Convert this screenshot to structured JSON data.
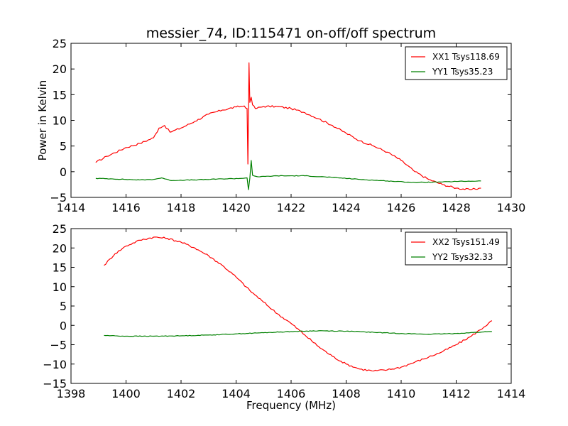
{
  "title": "messier_74, ID:115471 on-off/off spectrum",
  "colors": {
    "xx": "#ff0000",
    "yy": "#008000"
  },
  "chart_data": [
    {
      "type": "line",
      "xlabel": "",
      "ylabel": "Power in Kelvin",
      "xlim": [
        1414,
        1430
      ],
      "ylim": [
        -5,
        25
      ],
      "xticks": [
        "1414",
        "1416",
        "1418",
        "1420",
        "1422",
        "1424",
        "1426",
        "1428",
        "1430"
      ],
      "yticks": [
        "−5",
        "0",
        "5",
        "10",
        "15",
        "20",
        "25"
      ],
      "legend_position": "top-right",
      "series": [
        {
          "name": "XX1 Tsys118.69",
          "color": "#ff0000",
          "x": [
            1414.9,
            1415.3,
            1416.0,
            1416.5,
            1417.0,
            1417.2,
            1417.4,
            1417.6,
            1418.0,
            1418.5,
            1419.0,
            1419.5,
            1420.0,
            1420.3,
            1420.4,
            1420.43,
            1420.47,
            1420.5,
            1420.55,
            1420.6,
            1420.7,
            1421.0,
            1421.5,
            1422.0,
            1422.5,
            1423.0,
            1423.5,
            1424.0,
            1424.5,
            1425.0,
            1425.5,
            1426.0,
            1426.5,
            1427.0,
            1427.5,
            1428.0,
            1428.5,
            1428.9
          ],
          "y": [
            1.8,
            3.0,
            4.7,
            5.5,
            6.6,
            8.5,
            9.0,
            7.7,
            8.5,
            9.8,
            11.2,
            12.0,
            12.6,
            12.8,
            12.3,
            1.5,
            21.2,
            13.5,
            14.5,
            13.0,
            12.3,
            12.7,
            12.7,
            12.3,
            11.5,
            10.3,
            9.0,
            7.5,
            6.0,
            5.0,
            3.8,
            2.2,
            0.0,
            -1.5,
            -2.5,
            -3.2,
            -3.5,
            -3.2
          ]
        },
        {
          "name": "YY1 Tsys35.23",
          "color": "#008000",
          "x": [
            1414.9,
            1415.5,
            1416.5,
            1417.0,
            1417.3,
            1417.6,
            1418.5,
            1419.5,
            1420.2,
            1420.4,
            1420.45,
            1420.5,
            1420.55,
            1420.6,
            1420.8,
            1421.5,
            1422.5,
            1423.5,
            1424.5,
            1425.5,
            1426.5,
            1427.5,
            1428.0,
            1428.9
          ],
          "y": [
            -1.3,
            -1.4,
            -1.6,
            -1.5,
            -1.2,
            -1.7,
            -1.6,
            -1.4,
            -1.3,
            -1.2,
            -3.5,
            -1.3,
            2.2,
            -0.7,
            -1.0,
            -0.8,
            -0.8,
            -1.1,
            -1.5,
            -1.8,
            -2.1,
            -2.0,
            -1.9,
            -1.8
          ]
        }
      ]
    },
    {
      "type": "line",
      "xlabel": "Frequency (MHz)",
      "ylabel": "",
      "xlim": [
        1398,
        1414
      ],
      "ylim": [
        -15,
        25
      ],
      "xticks": [
        "1398",
        "1400",
        "1402",
        "1404",
        "1406",
        "1408",
        "1410",
        "1412",
        "1414"
      ],
      "yticks": [
        "−15",
        "−10",
        "−5",
        "0",
        "5",
        "10",
        "15",
        "20",
        "25"
      ],
      "legend_position": "top-right",
      "series": [
        {
          "name": "XX2 Tsys151.49",
          "color": "#ff0000",
          "x": [
            1399.2,
            1399.6,
            1400.0,
            1400.5,
            1401.0,
            1401.5,
            1402.0,
            1402.5,
            1403.0,
            1403.5,
            1404.0,
            1404.5,
            1405.0,
            1405.5,
            1406.0,
            1406.5,
            1407.0,
            1407.5,
            1408.0,
            1408.5,
            1409.0,
            1409.5,
            1410.0,
            1410.5,
            1411.0,
            1411.5,
            1412.0,
            1412.5,
            1413.0,
            1413.3
          ],
          "y": [
            15.5,
            18.5,
            20.5,
            22.0,
            22.8,
            22.5,
            21.5,
            20.0,
            18.0,
            15.5,
            12.5,
            9.0,
            6.0,
            3.0,
            0.5,
            -2.5,
            -5.5,
            -8.0,
            -10.0,
            -11.3,
            -11.8,
            -11.5,
            -10.8,
            -9.5,
            -8.2,
            -6.8,
            -5.0,
            -3.0,
            -0.5,
            1.2
          ]
        },
        {
          "name": "YY2 Tsys32.33",
          "color": "#008000",
          "x": [
            1399.2,
            1400.0,
            1401.0,
            1402.0,
            1403.0,
            1404.0,
            1405.0,
            1406.0,
            1407.0,
            1408.0,
            1409.0,
            1410.0,
            1411.0,
            1412.0,
            1413.0,
            1413.3
          ],
          "y": [
            -2.6,
            -2.8,
            -2.8,
            -2.7,
            -2.5,
            -2.2,
            -1.9,
            -1.6,
            -1.4,
            -1.5,
            -1.8,
            -2.1,
            -2.3,
            -2.1,
            -1.7,
            -1.6
          ]
        }
      ]
    }
  ]
}
